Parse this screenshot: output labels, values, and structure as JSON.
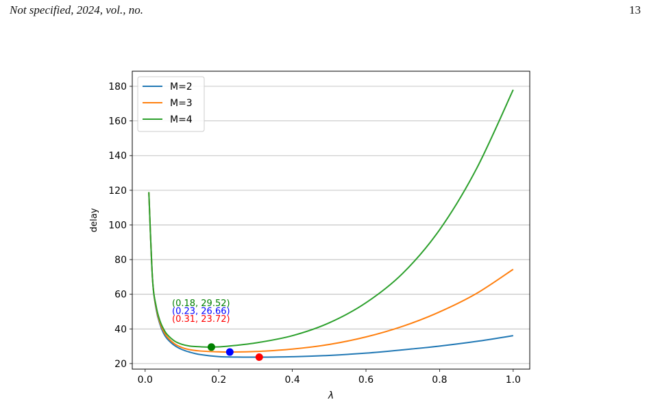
{
  "header": {
    "running_head": "Not specified, 2024, vol., no.",
    "page_number": "13"
  },
  "chart_data": {
    "type": "line",
    "title": "",
    "xlabel": "λ",
    "ylabel": "delay",
    "xlim": [
      -0.035,
      1.045
    ],
    "ylim": [
      16.8,
      188.7
    ],
    "x_ticks": [
      0.0,
      0.2,
      0.4,
      0.6,
      0.8,
      1.0
    ],
    "x_tick_labels": [
      "0.0",
      "0.2",
      "0.4",
      "0.6",
      "0.8",
      "1.0"
    ],
    "y_ticks": [
      20,
      40,
      60,
      80,
      100,
      120,
      140,
      160,
      180
    ],
    "y_tick_labels": [
      "20",
      "40",
      "60",
      "80",
      "100",
      "120",
      "140",
      "160",
      "180"
    ],
    "grid": "horizontal",
    "legend_position": "top-left",
    "series": [
      {
        "name": "M=2",
        "color": "#1f77b4",
        "x": [
          0.01,
          0.02,
          0.03,
          0.04,
          0.05,
          0.06,
          0.08,
          0.1,
          0.12,
          0.15,
          0.2,
          0.25,
          0.31,
          0.35,
          0.4,
          0.5,
          0.6,
          0.7,
          0.8,
          0.9,
          1.0
        ],
        "y": [
          118.96,
          68.87,
          51.25,
          42.81,
          37.45,
          34.26,
          30.39,
          28.11,
          26.67,
          25.18,
          24.01,
          23.75,
          23.72,
          23.77,
          23.96,
          24.72,
          26.03,
          27.93,
          30.1,
          32.8,
          36.1
        ]
      },
      {
        "name": "M=3",
        "color": "#ff7f0e",
        "x": [
          0.01,
          0.02,
          0.03,
          0.04,
          0.05,
          0.06,
          0.08,
          0.1,
          0.12,
          0.15,
          0.2,
          0.23,
          0.3,
          0.4,
          0.5,
          0.6,
          0.7,
          0.8,
          0.9,
          1.0
        ],
        "y": [
          118.96,
          68.87,
          52.06,
          43.7,
          38.69,
          35.36,
          31.38,
          29.24,
          28.08,
          27.25,
          26.76,
          26.66,
          26.96,
          28.38,
          31.04,
          35.36,
          41.52,
          49.81,
          60.4,
          74.4
        ]
      },
      {
        "name": "M=4",
        "color": "#2ca02c",
        "x": [
          0.01,
          0.02,
          0.03,
          0.04,
          0.05,
          0.06,
          0.08,
          0.1,
          0.12,
          0.15,
          0.18,
          0.22,
          0.3,
          0.4,
          0.5,
          0.6,
          0.7,
          0.8,
          0.9,
          1.0
        ],
        "y": [
          118.96,
          68.87,
          53.01,
          44.84,
          39.98,
          36.72,
          32.98,
          31.09,
          30.14,
          29.67,
          29.52,
          29.95,
          31.9,
          36.1,
          43.5,
          55.1,
          72.1,
          97.2,
          132.3,
          178.0
        ]
      }
    ],
    "markers": [
      {
        "x": 0.18,
        "y": 29.52,
        "color": "#008000",
        "label": "(0.18, 29.52)"
      },
      {
        "x": 0.23,
        "y": 26.66,
        "color": "#0000ff",
        "label": "(0.23, 26.66)"
      },
      {
        "x": 0.31,
        "y": 23.72,
        "color": "#ff0000",
        "label": "(0.31, 23.72)"
      }
    ]
  }
}
